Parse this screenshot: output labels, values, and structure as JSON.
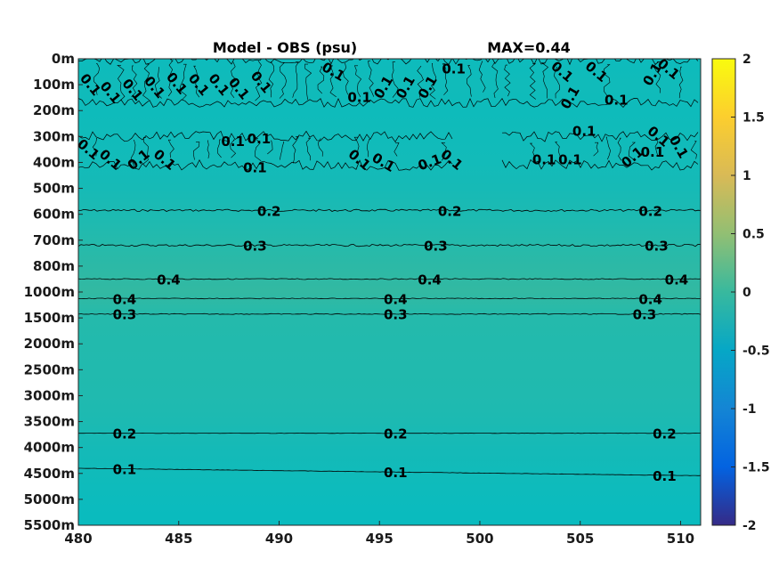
{
  "chart_data": {
    "type": "heatmap",
    "title": "Model - OBS (psu)",
    "annotation": "MAX=0.44",
    "x_ticks": [
      480,
      485,
      490,
      495,
      500,
      505,
      510
    ],
    "xlim": [
      480,
      511
    ],
    "y_ticks": [
      "0m",
      "100m",
      "200m",
      "300m",
      "400m",
      "500m",
      "600m",
      "700m",
      "800m",
      "1000m",
      "1500m",
      "2000m",
      "2500m",
      "3000m",
      "3500m",
      "4000m",
      "4500m",
      "5000m",
      "5500m"
    ],
    "colorbar": {
      "ticks": [
        2,
        1.5,
        1,
        0.5,
        0,
        -0.5,
        -1,
        -1.5,
        -2
      ],
      "tick_labels": [
        "2",
        "1.5",
        "1",
        "0.5",
        "0",
        "-0.5",
        "-1",
        "-1.5",
        "-2"
      ],
      "range": [
        -2,
        2
      ],
      "colormap": "parula"
    },
    "field_profile": [
      {
        "depth": "0m",
        "value": 0.07
      },
      {
        "depth": "100m",
        "value": 0.1
      },
      {
        "depth": "200m",
        "value": 0.08
      },
      {
        "depth": "300m",
        "value": 0.1
      },
      {
        "depth": "400m",
        "value": 0.12
      },
      {
        "depth": "500m",
        "value": 0.16
      },
      {
        "depth": "600m",
        "value": 0.22
      },
      {
        "depth": "700m",
        "value": 0.3
      },
      {
        "depth": "800m",
        "value": 0.38
      },
      {
        "depth": "1000m",
        "value": 0.44
      },
      {
        "depth": "1500m",
        "value": 0.3
      },
      {
        "depth": "2000m",
        "value": 0.28
      },
      {
        "depth": "2500m",
        "value": 0.27
      },
      {
        "depth": "3000m",
        "value": 0.26
      },
      {
        "depth": "3500m",
        "value": 0.22
      },
      {
        "depth": "4000m",
        "value": 0.15
      },
      {
        "depth": "4500m",
        "value": 0.1
      },
      {
        "depth": "5000m",
        "value": 0.06
      },
      {
        "depth": "5500m",
        "value": 0.03
      }
    ],
    "contours": [
      {
        "level": "0.2",
        "depth_index": 5.85,
        "noise": 1.2,
        "label_x": [
          489.5,
          498.5,
          508.5
        ]
      },
      {
        "level": "0.3",
        "depth_index": 7.2,
        "noise": 1.2,
        "label_x": [
          488.8,
          497.8,
          508.8
        ]
      },
      {
        "level": "0.4",
        "depth_index": 8.5,
        "noise": 0.6,
        "label_x": [
          484.5,
          497.5,
          509.8
        ]
      },
      {
        "level": "0.4",
        "depth_index": 9.25,
        "noise": 0.4,
        "label_x": [
          482.3,
          495.8,
          508.5
        ]
      },
      {
        "level": "0.3",
        "depth_index": 9.85,
        "noise": 0.5,
        "label_x": [
          482.3,
          495.8,
          508.2
        ]
      },
      {
        "level": "0.2",
        "depth_index": 14.45,
        "noise": 0.2,
        "label_x": [
          482.3,
          495.8,
          509.2
        ]
      },
      {
        "level": "0.1",
        "depth_index": 15.8,
        "noise": 0.2,
        "label_x": [
          482.3,
          495.8,
          509.2
        ]
      }
    ],
    "near_surface_labels": [
      {
        "text": "0.1",
        "x": 480.6,
        "d": 1.0,
        "rot": 50
      },
      {
        "text": "0.1",
        "x": 481.6,
        "d": 1.3,
        "rot": 50
      },
      {
        "text": "0.1",
        "x": 482.7,
        "d": 1.2,
        "rot": 50
      },
      {
        "text": "0.1",
        "x": 483.8,
        "d": 1.1,
        "rot": 50
      },
      {
        "text": "0.1",
        "x": 484.9,
        "d": 0.95,
        "rot": 50
      },
      {
        "text": "0.1",
        "x": 486.0,
        "d": 1.0,
        "rot": 50
      },
      {
        "text": "0.1",
        "x": 487.0,
        "d": 1.0,
        "rot": 50
      },
      {
        "text": "0.1",
        "x": 488.0,
        "d": 1.15,
        "rot": 50
      },
      {
        "text": "0.1",
        "x": 489.1,
        "d": 0.9,
        "rot": 50
      },
      {
        "text": "0.1",
        "x": 492.7,
        "d": 0.5,
        "rot": 30
      },
      {
        "text": "0.1",
        "x": 494.0,
        "d": 1.5,
        "rot": 0
      },
      {
        "text": "0.1",
        "x": 495.2,
        "d": 1.1,
        "rot": -60
      },
      {
        "text": "0.1",
        "x": 496.3,
        "d": 1.1,
        "rot": -60
      },
      {
        "text": "0.1",
        "x": 497.4,
        "d": 1.1,
        "rot": -60
      },
      {
        "text": "0.1",
        "x": 498.7,
        "d": 0.4,
        "rot": 0
      },
      {
        "text": "0.1",
        "x": 504.1,
        "d": 0.5,
        "rot": 40
      },
      {
        "text": "0.1",
        "x": 504.5,
        "d": 1.5,
        "rot": -60
      },
      {
        "text": "0.1",
        "x": 505.8,
        "d": 0.5,
        "rot": 40
      },
      {
        "text": "0.1",
        "x": 506.8,
        "d": 1.6,
        "rot": 0
      },
      {
        "text": "0.1",
        "x": 508.6,
        "d": 0.6,
        "rot": -60
      },
      {
        "text": "0.1",
        "x": 509.4,
        "d": 0.4,
        "rot": 40
      },
      {
        "text": "0.1",
        "x": 480.5,
        "d": 3.5,
        "rot": 40
      },
      {
        "text": "0.1",
        "x": 481.6,
        "d": 3.9,
        "rot": 40
      },
      {
        "text": "0.1",
        "x": 483.0,
        "d": 3.9,
        "rot": -40
      },
      {
        "text": "0.1",
        "x": 484.3,
        "d": 3.9,
        "rot": 40
      },
      {
        "text": "0.1",
        "x": 487.7,
        "d": 3.2,
        "rot": 0
      },
      {
        "text": "0.1",
        "x": 489.0,
        "d": 3.1,
        "rot": 0
      },
      {
        "text": "0.1",
        "x": 488.8,
        "d": 4.2,
        "rot": 0
      },
      {
        "text": "0.1",
        "x": 494.0,
        "d": 3.9,
        "rot": 40
      },
      {
        "text": "0.1",
        "x": 495.2,
        "d": 4.0,
        "rot": 30
      },
      {
        "text": "0.1",
        "x": 497.5,
        "d": 4.0,
        "rot": -20
      },
      {
        "text": "0.1",
        "x": 498.6,
        "d": 3.9,
        "rot": 40
      },
      {
        "text": "0.1",
        "x": 503.2,
        "d": 3.9,
        "rot": 0
      },
      {
        "text": "0.1",
        "x": 504.5,
        "d": 3.9,
        "rot": 0
      },
      {
        "text": "0.1",
        "x": 505.2,
        "d": 2.8,
        "rot": 0
      },
      {
        "text": "0.1",
        "x": 507.6,
        "d": 3.8,
        "rot": -40
      },
      {
        "text": "0.1",
        "x": 508.6,
        "d": 3.6,
        "rot": 0
      },
      {
        "text": "0.1",
        "x": 508.9,
        "d": 3.0,
        "rot": 40
      },
      {
        "text": "0.1",
        "x": 509.9,
        "d": 3.4,
        "rot": 60
      }
    ]
  }
}
